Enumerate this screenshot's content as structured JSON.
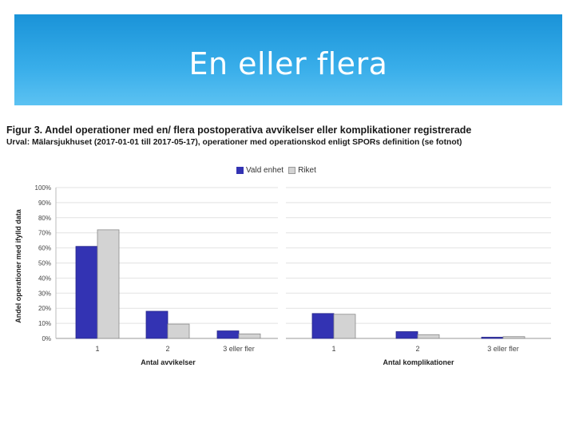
{
  "slide": {
    "title": "En eller flera"
  },
  "figure": {
    "title": "Figur 3. Andel operationer med en/ flera postoperativa avvikelser eller komplikationer registrerade",
    "subtitle": "Urval: Mälarsjukhuset (2017-01-01 till 2017-05-17), operationer med operationskod enligt SPORs definition (se fotnot)"
  },
  "colors": {
    "series1": "#3333b3",
    "series2": "#d3d3d3",
    "banner": "#2aa3e3"
  },
  "chart_data": [
    {
      "type": "bar",
      "categories": [
        "1",
        "2",
        "3 eller fler"
      ],
      "series": [
        {
          "name": "Vald enhet",
          "values": [
            61,
            18,
            5
          ]
        },
        {
          "name": "Riket",
          "values": [
            72,
            9.5,
            3
          ]
        }
      ],
      "xlabel": "Antal avvikelser",
      "ylabel": "Andel operationer med ifylld data",
      "ylim": [
        0,
        100
      ],
      "yticks": [
        "0%",
        "10%",
        "20%",
        "30%",
        "40%",
        "50%",
        "60%",
        "70%",
        "80%",
        "90%",
        "100%"
      ],
      "legend": "top-center",
      "grid": true
    },
    {
      "type": "bar",
      "categories": [
        "1",
        "2",
        "3 eller fler"
      ],
      "series": [
        {
          "name": "Vald enhet",
          "values": [
            16.5,
            4.5,
            0.8
          ]
        },
        {
          "name": "Riket",
          "values": [
            16,
            2.5,
            1.2
          ]
        }
      ],
      "xlabel": "Antal komplikationer",
      "ylim": [
        0,
        100
      ],
      "grid": true
    }
  ]
}
